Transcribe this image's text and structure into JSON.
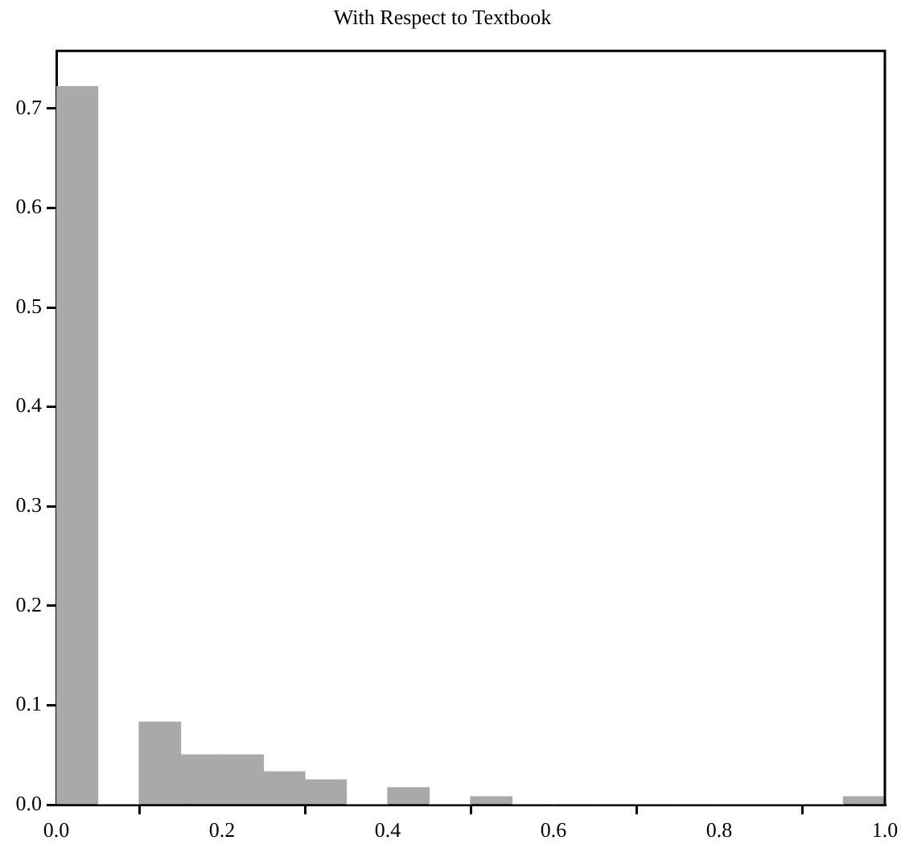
{
  "chart_data": {
    "type": "histogram",
    "title": "With Respect to Textbook",
    "bins": [
      0,
      0.05,
      0.1,
      0.15,
      0.2,
      0.25,
      0.3,
      0.35,
      0.4,
      0.45,
      0.5,
      0.55,
      0.6,
      0.65,
      0.7,
      0.75,
      0.8,
      0.85,
      0.9,
      0.95,
      1.0
    ],
    "values": [
      0.722,
      0,
      0.083,
      0.05,
      0.05,
      0.033,
      0.025,
      0,
      0.017,
      0,
      0.008,
      0,
      0,
      0,
      0,
      0,
      0,
      0,
      0,
      0.008
    ],
    "color": "#a9a9a9",
    "xlim": [
      0,
      1
    ],
    "xticks": [
      {
        "value": 0,
        "label": "0.0"
      },
      0.2,
      0.4,
      0.6,
      0.8,
      {
        "value": 1,
        "label": "1.0"
      }
    ],
    "ylim": [
      0,
      0.758
    ],
    "yticks": [
      {
        "value": 0,
        "label": "0.0"
      },
      0.1,
      0.2,
      0.3,
      0.4,
      0.5,
      0.6,
      0.7
    ],
    "grid": false,
    "legend": false
  }
}
